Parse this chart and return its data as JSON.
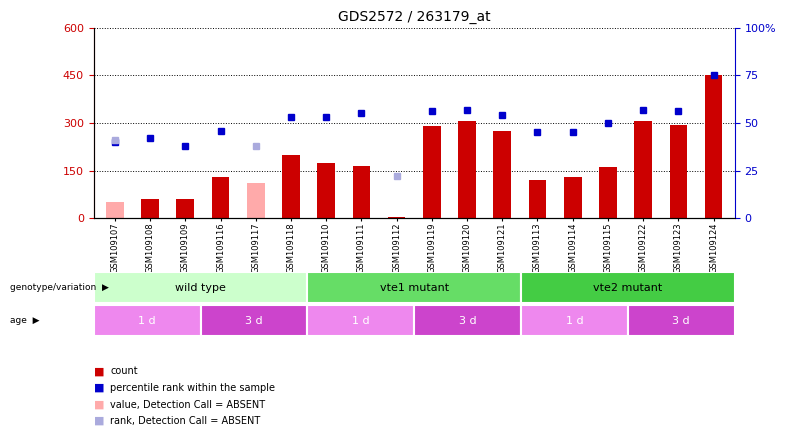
{
  "title": "GDS2572 / 263179_at",
  "samples": [
    "GSM109107",
    "GSM109108",
    "GSM109109",
    "GSM109116",
    "GSM109117",
    "GSM109118",
    "GSM109110",
    "GSM109111",
    "GSM109112",
    "GSM109119",
    "GSM109120",
    "GSM109121",
    "GSM109113",
    "GSM109114",
    "GSM109115",
    "GSM109122",
    "GSM109123",
    "GSM109124"
  ],
  "count_values": [
    null,
    60,
    60,
    130,
    null,
    200,
    175,
    165,
    5,
    290,
    305,
    275,
    120,
    130,
    160,
    305,
    295,
    450
  ],
  "count_absent": [
    50,
    null,
    null,
    null,
    110,
    null,
    null,
    null,
    null,
    null,
    null,
    null,
    null,
    null,
    null,
    null,
    null,
    null
  ],
  "rank_values": [
    40,
    42,
    38,
    46,
    null,
    53,
    53,
    55,
    null,
    56,
    57,
    54,
    45,
    45,
    50,
    57,
    56,
    75
  ],
  "rank_absent": [
    41,
    null,
    null,
    null,
    38,
    null,
    null,
    null,
    22,
    null,
    null,
    null,
    null,
    null,
    null,
    null,
    null,
    null
  ],
  "ylim_left": [
    0,
    600
  ],
  "ylim_right": [
    0,
    100
  ],
  "yticks_left": [
    0,
    150,
    300,
    450,
    600
  ],
  "yticks_right": [
    0,
    25,
    50,
    75,
    100
  ],
  "bar_color_present": "#cc0000",
  "bar_color_absent": "#ffaaaa",
  "dot_color_present": "#0000cc",
  "dot_color_absent": "#aaaadd",
  "bg_color_plot": "#ffffff",
  "bg_color_fig": "#ffffff",
  "genotype_groups": [
    {
      "label": "wild type",
      "start": 0,
      "end": 6,
      "color": "#ccffcc"
    },
    {
      "label": "vte1 mutant",
      "start": 6,
      "end": 12,
      "color": "#66dd66"
    },
    {
      "label": "vte2 mutant",
      "start": 12,
      "end": 18,
      "color": "#44cc44"
    }
  ],
  "age_groups": [
    {
      "label": "1 d",
      "start": 0,
      "end": 3,
      "color": "#ee88ee"
    },
    {
      "label": "3 d",
      "start": 3,
      "end": 6,
      "color": "#cc44cc"
    },
    {
      "label": "1 d",
      "start": 6,
      "end": 9,
      "color": "#ee88ee"
    },
    {
      "label": "3 d",
      "start": 9,
      "end": 12,
      "color": "#cc44cc"
    },
    {
      "label": "1 d",
      "start": 12,
      "end": 15,
      "color": "#ee88ee"
    },
    {
      "label": "3 d",
      "start": 15,
      "end": 18,
      "color": "#cc44cc"
    }
  ],
  "legend_items": [
    {
      "label": "count",
      "color": "#cc0000"
    },
    {
      "label": "percentile rank within the sample",
      "color": "#0000cc"
    },
    {
      "label": "value, Detection Call = ABSENT",
      "color": "#ffaaaa"
    },
    {
      "label": "rank, Detection Call = ABSENT",
      "color": "#aaaadd"
    }
  ],
  "left_axis_color": "#cc0000",
  "right_axis_color": "#0000cc"
}
